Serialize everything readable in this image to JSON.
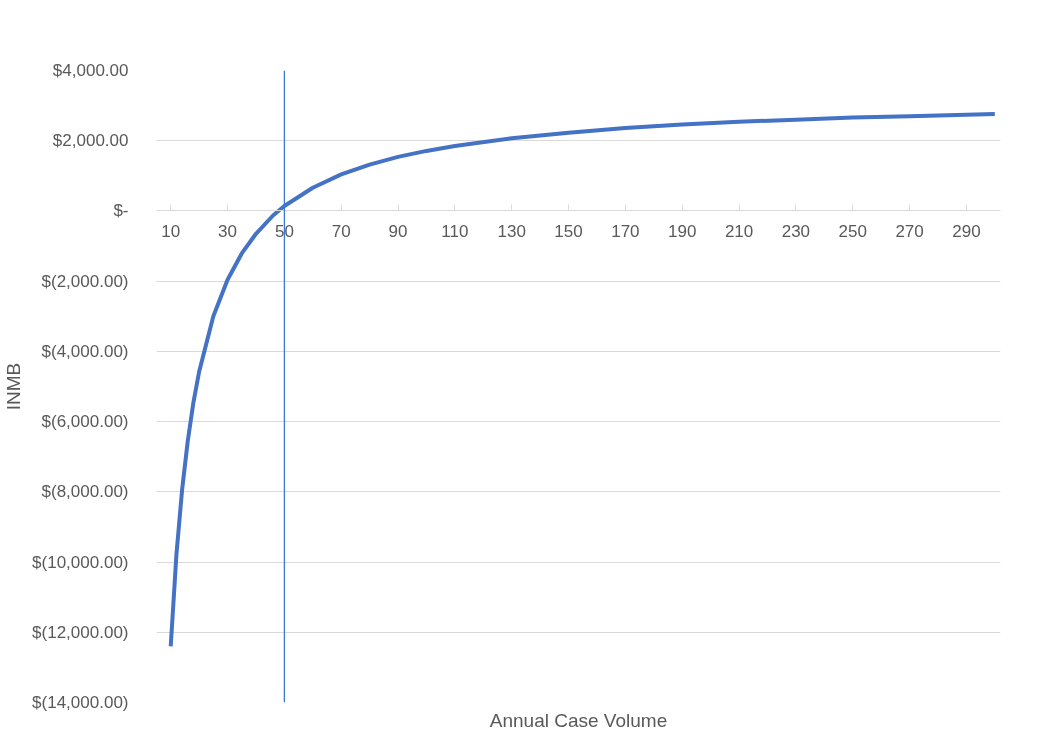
{
  "chart_data": {
    "type": "line",
    "xlabel": "Annual Case Volume",
    "ylabel": "INMB",
    "x": [
      10,
      12,
      14,
      16,
      18,
      20,
      25,
      30,
      35,
      40,
      46,
      50,
      60,
      70,
      80,
      90,
      100,
      110,
      130,
      150,
      170,
      190,
      210,
      230,
      250,
      270,
      300
    ],
    "series": [
      {
        "color": "#4472c4",
        "values": [
          -12400,
          -9800,
          -7950,
          -6550,
          -5450,
          -4580,
          -3000,
          -1960,
          -1210,
          -650,
          -130,
          140,
          660,
          1040,
          1320,
          1540,
          1710,
          1850,
          2070,
          2230,
          2360,
          2460,
          2540,
          2600,
          2660,
          2700,
          2760
        ]
      }
    ],
    "xlim": [
      5,
      302
    ],
    "xticks": [
      10,
      30,
      50,
      70,
      90,
      110,
      130,
      150,
      170,
      190,
      210,
      230,
      250,
      270,
      290
    ],
    "ylim": [
      -14000,
      4000
    ],
    "yticks": [
      {
        "value": 4000,
        "label": "$4,000.00"
      },
      {
        "value": 2000,
        "label": "$2,000.00"
      },
      {
        "value": 0,
        "label": "$-"
      },
      {
        "value": -2000,
        "label": "$(2,000.00)"
      },
      {
        "value": -4000,
        "label": "$(4,000.00)"
      },
      {
        "value": -6000,
        "label": "$(6,000.00)"
      },
      {
        "value": -8000,
        "label": "$(8,000.00)"
      },
      {
        "value": -10000,
        "label": "$(10,000.00)"
      },
      {
        "value": -12000,
        "label": "$(12,000.00)"
      },
      {
        "value": -14000,
        "label": "$(14,000.00)"
      }
    ],
    "ref_lines": [
      {
        "axis": "x",
        "value": 50,
        "color": "#3c78d8"
      }
    ],
    "grid": "y",
    "marker": "none",
    "line_style": "solid"
  }
}
